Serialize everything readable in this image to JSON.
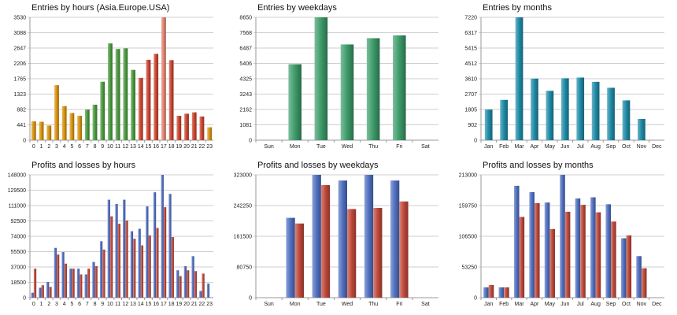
{
  "chart_data": [
    {
      "type": "bar",
      "title": "Entries by hours (Asia.Europe.USA)",
      "categories": [
        "0",
        "1",
        "2",
        "3",
        "4",
        "5",
        "6",
        "7",
        "8",
        "9",
        "10",
        "11",
        "12",
        "13",
        "14",
        "15",
        "16",
        "17",
        "18",
        "19",
        "20",
        "21",
        "22",
        "23"
      ],
      "values": [
        540,
        530,
        420,
        1580,
        980,
        780,
        700,
        880,
        1020,
        1680,
        2780,
        2620,
        2640,
        2020,
        1790,
        2310,
        2480,
        3530,
        2300,
        700,
        760,
        800,
        680,
        370
      ],
      "bar_colors": [
        "#d8920e",
        "#d8920e",
        "#d8920e",
        "#d8920e",
        "#d8920e",
        "#d8920e",
        "#d8920e",
        "#4a9a3e",
        "#4a9a3e",
        "#4a9a3e",
        "#4a9a3e",
        "#4a9a3e",
        "#4a9a3e",
        "#4a9a3e",
        "#c9452f",
        "#c9452f",
        "#c9452f",
        "#e0836e",
        "#c9452f",
        "#c9452f",
        "#c9452f",
        "#c9452f",
        "#c9452f",
        "#d8920e"
      ],
      "ylim": [
        0,
        3530
      ],
      "yticks": [
        "0",
        "441",
        "882",
        "1323",
        "1765",
        "2206",
        "2647",
        "3088",
        "3530"
      ],
      "grid": true
    },
    {
      "type": "bar",
      "title": "Entries by weekdays",
      "categories": [
        "Sun",
        "Mon",
        "Tue",
        "Wed",
        "Thu",
        "Fri",
        "Sat"
      ],
      "values": [
        0,
        5350,
        8650,
        6740,
        7180,
        7380,
        0
      ],
      "bar_color": "#3c9a68",
      "ylim": [
        0,
        8650
      ],
      "yticks": [
        "0",
        "1081",
        "2162",
        "3243",
        "4325",
        "5406",
        "6487",
        "7568",
        "8650"
      ],
      "grid": true
    },
    {
      "type": "bar",
      "title": "Entries by months",
      "categories": [
        "Jan",
        "Feb",
        "Mar",
        "Apr",
        "May",
        "Jun",
        "Jul",
        "Aug",
        "Sep",
        "Oct",
        "Nov",
        "Dec"
      ],
      "values": [
        1800,
        2370,
        7220,
        3620,
        2900,
        3640,
        3680,
        3430,
        3080,
        2340,
        1250,
        0
      ],
      "bar_color": "#1e8aa6",
      "ylim": [
        0,
        7220
      ],
      "yticks": [
        "0",
        "902",
        "1805",
        "2707",
        "3610",
        "4512",
        "5415",
        "6317",
        "7220"
      ],
      "grid": true
    },
    {
      "type": "bar",
      "title": "Profits and losses by hours",
      "categories": [
        "0",
        "1",
        "2",
        "3",
        "4",
        "5",
        "6",
        "7",
        "8",
        "9",
        "10",
        "11",
        "12",
        "13",
        "14",
        "15",
        "16",
        "17",
        "18",
        "19",
        "20",
        "21",
        "22",
        "23"
      ],
      "series": [
        {
          "values": [
            6000,
            12000,
            19000,
            60000,
            55000,
            35000,
            35000,
            28000,
            43000,
            68000,
            118000,
            113000,
            118000,
            80000,
            83000,
            110000,
            127000,
            148000,
            125000,
            33000,
            38000,
            50000,
            8000,
            17000
          ],
          "color": "#4f6fc0"
        },
        {
          "values": [
            35000,
            15000,
            13000,
            52000,
            41000,
            35000,
            28000,
            35000,
            38000,
            58000,
            98000,
            89000,
            93000,
            71000,
            63000,
            75000,
            84000,
            109000,
            73000,
            26000,
            33000,
            32000,
            29000,
            0
          ],
          "color": "#c0483a"
        }
      ],
      "ylim": [
        0,
        148000
      ],
      "yticks": [
        "0",
        "18500",
        "37000",
        "55500",
        "74000",
        "92500",
        "111000",
        "129500",
        "148000"
      ],
      "grid": true
    },
    {
      "type": "bar",
      "title": "Profits and losses by weekdays",
      "categories": [
        "Sun",
        "Mon",
        "Tue",
        "Wed",
        "Thu",
        "Fri",
        "Sat"
      ],
      "series": [
        {
          "values": [
            0,
            210000,
            323000,
            308000,
            323000,
            308000,
            0
          ],
          "color": "#4f6fc0"
        },
        {
          "values": [
            0,
            195000,
            296000,
            233000,
            236000,
            253000,
            0
          ],
          "color": "#c0483a"
        }
      ],
      "ylim": [
        0,
        323000
      ],
      "yticks": [
        "0",
        "80750",
        "161500",
        "242250",
        "323000"
      ],
      "grid": true
    },
    {
      "type": "bar",
      "title": "Profits and losses by months",
      "categories": [
        "Jan",
        "Feb",
        "Mar",
        "Apr",
        "May",
        "Jun",
        "Jul",
        "Aug",
        "Sep",
        "Oct",
        "Nov",
        "Dec"
      ],
      "series": [
        {
          "values": [
            18000,
            18000,
            194000,
            183000,
            165000,
            213000,
            172000,
            174000,
            162000,
            103000,
            72000,
            0
          ],
          "color": "#4f6fc0"
        },
        {
          "values": [
            22000,
            18000,
            140000,
            164000,
            119000,
            149000,
            161000,
            148000,
            132000,
            108000,
            51000,
            0
          ],
          "color": "#c0483a"
        }
      ],
      "ylim": [
        0,
        213000
      ],
      "yticks": [
        "0",
        "53250",
        "106500",
        "159750",
        "213000"
      ],
      "grid": true
    }
  ]
}
